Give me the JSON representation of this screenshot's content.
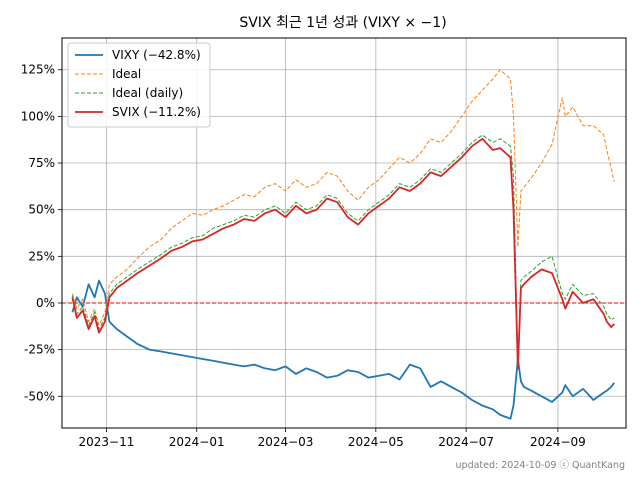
{
  "chart_data": {
    "type": "line",
    "title": "SVIX 최근 1년 성과 (VIXY × −1)",
    "xlabel": "",
    "ylabel": "",
    "x_start": "2023-10-09",
    "x_end": "2024-10-09",
    "xlim": [
      "2023-10-02",
      "2024-10-17"
    ],
    "ylim": [
      -67,
      142
    ],
    "x_ticks": [
      {
        "date": "2023-11-01",
        "label": "2023−11"
      },
      {
        "date": "2024-01-01",
        "label": "2024−01"
      },
      {
        "date": "2024-03-01",
        "label": "2024−03"
      },
      {
        "date": "2024-05-01",
        "label": "2024−05"
      },
      {
        "date": "2024-07-01",
        "label": "2024−07"
      },
      {
        "date": "2024-09-01",
        "label": "2024−09"
      }
    ],
    "y_ticks": [
      {
        "value": 125,
        "label": "125%"
      },
      {
        "value": 100,
        "label": "100%"
      },
      {
        "value": 75,
        "label": "75%"
      },
      {
        "value": 50,
        "label": "50%"
      },
      {
        "value": 25,
        "label": "25%"
      },
      {
        "value": 0,
        "label": "0%"
      },
      {
        "value": -25,
        "label": "-25%"
      },
      {
        "value": -50,
        "label": "-50%"
      }
    ],
    "grid": true,
    "legend_position": "top-left",
    "reference_line": {
      "value": 0,
      "color": "#ff0000",
      "style": "dashed"
    },
    "footer": "updated: 2024-10-09 ⓒ QuantKang",
    "series": [
      {
        "name": "VIXY (−42.8%)",
        "color": "#1f77b4",
        "style": "solid",
        "x": [
          "2023-10-09",
          "2023-10-12",
          "2023-10-16",
          "2023-10-20",
          "2023-10-24",
          "2023-10-27",
          "2023-10-31",
          "2023-11-03",
          "2023-11-08",
          "2023-11-15",
          "2023-11-22",
          "2023-11-30",
          "2023-12-08",
          "2023-12-15",
          "2023-12-22",
          "2023-12-29",
          "2024-01-05",
          "2024-01-12",
          "2024-01-19",
          "2024-01-26",
          "2024-02-02",
          "2024-02-09",
          "2024-02-16",
          "2024-02-23",
          "2024-03-01",
          "2024-03-08",
          "2024-03-15",
          "2024-03-22",
          "2024-03-29",
          "2024-04-05",
          "2024-04-12",
          "2024-04-19",
          "2024-04-26",
          "2024-05-03",
          "2024-05-10",
          "2024-05-17",
          "2024-05-24",
          "2024-05-31",
          "2024-06-07",
          "2024-06-14",
          "2024-06-21",
          "2024-06-28",
          "2024-07-05",
          "2024-07-12",
          "2024-07-19",
          "2024-07-24",
          "2024-07-31",
          "2024-08-02",
          "2024-08-05",
          "2024-08-07",
          "2024-08-09",
          "2024-08-14",
          "2024-08-21",
          "2024-08-28",
          "2024-09-04",
          "2024-09-06",
          "2024-09-11",
          "2024-09-18",
          "2024-09-25",
          "2024-10-02",
          "2024-10-04",
          "2024-10-07",
          "2024-10-09"
        ],
        "values": [
          -5,
          3,
          -2,
          10,
          3,
          12,
          5,
          -10,
          -14,
          -18,
          -22,
          -25,
          -26,
          -27,
          -28,
          -29,
          -30,
          -31,
          -32,
          -33,
          -34,
          -33,
          -35,
          -36,
          -34,
          -38,
          -35,
          -37,
          -40,
          -39,
          -36,
          -37,
          -40,
          -39,
          -38,
          -41,
          -33,
          -35,
          -45,
          -42,
          -45,
          -48,
          -52,
          -55,
          -57,
          -60,
          -62,
          -55,
          -30,
          -42,
          -45,
          -47,
          -50,
          -53,
          -48,
          -44,
          -50,
          -46,
          -52,
          -48,
          -47,
          -45,
          -42.8
        ]
      },
      {
        "name": "Ideal",
        "color": "#ff7f0e",
        "style": "dashed",
        "x": [
          "2023-10-09",
          "2023-10-12",
          "2023-10-16",
          "2023-10-20",
          "2023-10-24",
          "2023-10-27",
          "2023-10-31",
          "2023-11-03",
          "2023-11-08",
          "2023-11-15",
          "2023-11-22",
          "2023-11-30",
          "2023-12-08",
          "2023-12-15",
          "2023-12-22",
          "2023-12-29",
          "2024-01-05",
          "2024-01-12",
          "2024-01-19",
          "2024-01-26",
          "2024-02-02",
          "2024-02-09",
          "2024-02-16",
          "2024-02-23",
          "2024-03-01",
          "2024-03-08",
          "2024-03-15",
          "2024-03-22",
          "2024-03-29",
          "2024-04-05",
          "2024-04-12",
          "2024-04-19",
          "2024-04-26",
          "2024-05-03",
          "2024-05-10",
          "2024-05-17",
          "2024-05-24",
          "2024-05-31",
          "2024-06-07",
          "2024-06-14",
          "2024-06-21",
          "2024-06-28",
          "2024-07-05",
          "2024-07-12",
          "2024-07-19",
          "2024-07-24",
          "2024-07-31",
          "2024-08-02",
          "2024-08-05",
          "2024-08-07",
          "2024-08-09",
          "2024-08-14",
          "2024-08-21",
          "2024-08-28",
          "2024-09-04",
          "2024-09-06",
          "2024-09-11",
          "2024-09-18",
          "2024-09-25",
          "2024-10-02",
          "2024-10-04",
          "2024-10-07",
          "2024-10-09"
        ],
        "values": [
          5,
          -3,
          2,
          -10,
          -3,
          -12,
          -5,
          10,
          14,
          18,
          24,
          30,
          34,
          40,
          44,
          48,
          47,
          50,
          52,
          55,
          58,
          57,
          62,
          64,
          60,
          66,
          62,
          64,
          70,
          68,
          60,
          55,
          62,
          66,
          72,
          78,
          75,
          80,
          88,
          86,
          92,
          100,
          108,
          114,
          120,
          125,
          120,
          100,
          30,
          60,
          62,
          67,
          75,
          85,
          110,
          100,
          105,
          95,
          95,
          90,
          82,
          72,
          65
        ]
      },
      {
        "name": "Ideal (daily)",
        "color": "#2ca02c",
        "style": "dashed",
        "x": [
          "2023-10-09",
          "2023-10-12",
          "2023-10-16",
          "2023-10-20",
          "2023-10-24",
          "2023-10-27",
          "2023-10-31",
          "2023-11-03",
          "2023-11-08",
          "2023-11-15",
          "2023-11-22",
          "2023-11-30",
          "2023-12-08",
          "2023-12-15",
          "2023-12-22",
          "2023-12-29",
          "2024-01-05",
          "2024-01-12",
          "2024-01-19",
          "2024-01-26",
          "2024-02-02",
          "2024-02-09",
          "2024-02-16",
          "2024-02-23",
          "2024-03-01",
          "2024-03-08",
          "2024-03-15",
          "2024-03-22",
          "2024-03-29",
          "2024-04-05",
          "2024-04-12",
          "2024-04-19",
          "2024-04-26",
          "2024-05-03",
          "2024-05-10",
          "2024-05-17",
          "2024-05-24",
          "2024-05-31",
          "2024-06-07",
          "2024-06-14",
          "2024-06-21",
          "2024-06-28",
          "2024-07-05",
          "2024-07-12",
          "2024-07-19",
          "2024-07-24",
          "2024-07-31",
          "2024-08-02",
          "2024-08-05",
          "2024-08-07",
          "2024-08-09",
          "2024-08-14",
          "2024-08-21",
          "2024-08-28",
          "2024-09-04",
          "2024-09-06",
          "2024-09-11",
          "2024-09-18",
          "2024-09-25",
          "2024-10-02",
          "2024-10-04",
          "2024-10-07",
          "2024-10-09"
        ],
        "values": [
          4,
          -6,
          -2,
          -12,
          -5,
          -14,
          -8,
          5,
          10,
          14,
          18,
          22,
          26,
          30,
          32,
          35,
          36,
          40,
          42,
          44,
          47,
          46,
          50,
          52,
          48,
          54,
          50,
          52,
          58,
          56,
          48,
          44,
          50,
          54,
          58,
          64,
          62,
          66,
          72,
          70,
          75,
          80,
          86,
          90,
          86,
          88,
          84,
          68,
          -32,
          12,
          14,
          17,
          22,
          25,
          5,
          2,
          10,
          4,
          5,
          -2,
          -6,
          -9,
          -8
        ]
      },
      {
        "name": "SVIX (−11.2%)",
        "color": "#d62728",
        "style": "solid",
        "x": [
          "2023-10-09",
          "2023-10-12",
          "2023-10-16",
          "2023-10-20",
          "2023-10-24",
          "2023-10-27",
          "2023-10-31",
          "2023-11-03",
          "2023-11-08",
          "2023-11-15",
          "2023-11-22",
          "2023-11-30",
          "2023-12-08",
          "2023-12-15",
          "2023-12-22",
          "2023-12-29",
          "2024-01-05",
          "2024-01-12",
          "2024-01-19",
          "2024-01-26",
          "2024-02-02",
          "2024-02-09",
          "2024-02-16",
          "2024-02-23",
          "2024-03-01",
          "2024-03-08",
          "2024-03-15",
          "2024-03-22",
          "2024-03-29",
          "2024-04-05",
          "2024-04-12",
          "2024-04-19",
          "2024-04-26",
          "2024-05-03",
          "2024-05-10",
          "2024-05-17",
          "2024-05-24",
          "2024-05-31",
          "2024-06-07",
          "2024-06-14",
          "2024-06-21",
          "2024-06-28",
          "2024-07-05",
          "2024-07-12",
          "2024-07-19",
          "2024-07-24",
          "2024-07-31",
          "2024-08-02",
          "2024-08-05",
          "2024-08-07",
          "2024-08-09",
          "2024-08-14",
          "2024-08-21",
          "2024-08-28",
          "2024-09-04",
          "2024-09-06",
          "2024-09-11",
          "2024-09-18",
          "2024-09-25",
          "2024-10-02",
          "2024-10-04",
          "2024-10-07",
          "2024-10-09"
        ],
        "values": [
          3,
          -8,
          -4,
          -14,
          -7,
          -16,
          -10,
          3,
          8,
          12,
          16,
          20,
          24,
          28,
          30,
          33,
          34,
          37,
          40,
          42,
          45,
          44,
          48,
          50,
          46,
          52,
          48,
          50,
          56,
          54,
          46,
          42,
          48,
          52,
          56,
          62,
          60,
          64,
          70,
          68,
          73,
          78,
          84,
          88,
          82,
          83,
          78,
          50,
          -35,
          8,
          10,
          14,
          18,
          16,
          2,
          -3,
          6,
          0,
          2,
          -6,
          -10,
          -13,
          -11.2
        ]
      }
    ]
  }
}
